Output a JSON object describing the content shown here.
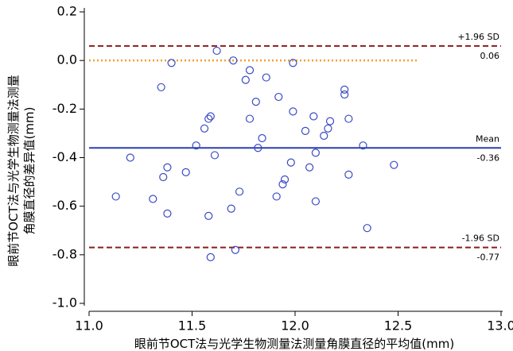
{
  "chart_data": {
    "type": "scatter",
    "xlabel": "眼前节OCT法与光学生物测量法测量角膜直径的平均值(mm)",
    "ylabel": [
      "眼前节OCT法与光学生物测量法测量",
      "角膜直径的差异值(mm)"
    ],
    "xlim": [
      11.0,
      13.0
    ],
    "ylim": [
      -1.0,
      0.2
    ],
    "xticks": [
      {
        "value": 11.0,
        "label": "11.0"
      },
      11.5,
      {
        "value": 12.0,
        "label": "12.0"
      },
      12.5,
      {
        "value": 13.0,
        "label": "13.0"
      }
    ],
    "yticks": [
      0.2,
      {
        "value": 0.0,
        "label": "0.0"
      },
      -0.2,
      -0.4,
      -0.6,
      -0.8,
      {
        "value": -1.0,
        "label": "-1.0"
      }
    ],
    "color": "#3a4ac4",
    "x": [
      11.13,
      11.2,
      11.31,
      11.35,
      11.36,
      11.38,
      11.38,
      11.4,
      11.47,
      11.52,
      11.56,
      11.58,
      11.59,
      11.58,
      11.59,
      11.61,
      11.62,
      11.69,
      11.7,
      11.71,
      11.73,
      11.76,
      11.78,
      11.78,
      11.81,
      11.82,
      11.84,
      11.86,
      11.91,
      11.92,
      11.94,
      11.95,
      11.98,
      11.99,
      11.99,
      12.05,
      12.07,
      12.09,
      12.1,
      12.1,
      12.14,
      12.16,
      12.17,
      12.24,
      12.24,
      12.26,
      12.26,
      12.33,
      12.35,
      12.48
    ],
    "y": [
      -0.56,
      -0.4,
      -0.57,
      -0.11,
      -0.48,
      -0.44,
      -0.63,
      -0.01,
      -0.46,
      -0.35,
      -0.28,
      -0.24,
      -0.23,
      -0.64,
      -0.81,
      -0.39,
      0.04,
      -0.61,
      0.0,
      -0.78,
      -0.54,
      -0.08,
      -0.24,
      -0.04,
      -0.17,
      -0.36,
      -0.32,
      -0.07,
      -0.56,
      -0.15,
      -0.51,
      -0.49,
      -0.42,
      -0.21,
      -0.01,
      -0.29,
      -0.44,
      -0.23,
      -0.38,
      -0.58,
      -0.31,
      -0.28,
      -0.25,
      -0.14,
      -0.12,
      -0.24,
      -0.47,
      -0.35,
      -0.69,
      -0.43
    ],
    "reference_lines": [
      {
        "label": "+1.96 SD",
        "value": 0.06,
        "color": "#8b1c1c",
        "style": "dashed"
      },
      {
        "value": 0,
        "color": "#f0a030",
        "style": "dotted",
        "x_range": [
          11.0,
          12.6
        ]
      },
      {
        "label": "Mean",
        "value": -0.36,
        "color": "#2b3fb0",
        "style": "solid"
      },
      {
        "label": "-1.96 SD",
        "value": -0.77,
        "color": "#8b1c1c",
        "style": "dashed"
      }
    ]
  }
}
